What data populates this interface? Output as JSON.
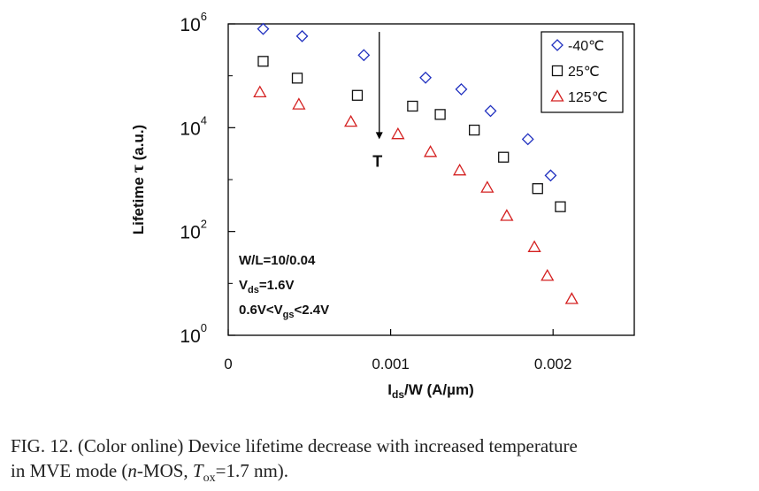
{
  "chart_data": {
    "type": "scatter",
    "x_scale": "linear",
    "y_scale": "log",
    "xlim": [
      0,
      0.0025
    ],
    "ylim": [
      1,
      1000000
    ],
    "x_ticks": [
      0,
      0.001,
      0.002
    ],
    "x_tick_labels": [
      "0",
      "0.001",
      "0.002"
    ],
    "y_ticks": [
      1,
      100,
      10000,
      1000000
    ],
    "y_tick_labels": [
      {
        "base": "10",
        "exp": "0"
      },
      {
        "base": "10",
        "exp": "2"
      },
      {
        "base": "10",
        "exp": "4"
      },
      {
        "base": "10",
        "exp": "6"
      }
    ],
    "xlabel": {
      "main": "I",
      "sub": "ds",
      "rest": "/W (A/µm)"
    },
    "ylabel": {
      "main": "Lifetime ",
      "symbol": "τ",
      "rest": " (a.u.)"
    },
    "legend_position": "top-right",
    "grid": false,
    "series": [
      {
        "name": "-40℃",
        "marker": "diamond",
        "color": "#1f2fbf",
        "x": [
          0.000215,
          0.000455,
          0.000835,
          0.001215,
          0.001435,
          0.001615,
          0.001845,
          0.001985
        ],
        "y": [
          800000,
          580000,
          250000,
          92000,
          55000,
          21000,
          6000,
          1200
        ]
      },
      {
        "name": "25℃",
        "marker": "square",
        "color": "#111111",
        "x": [
          0.000215,
          0.000425,
          0.000795,
          0.001135,
          0.001305,
          0.001515,
          0.001695,
          0.001905,
          0.002045
        ],
        "y": [
          190000,
          90000,
          42000,
          26000,
          18000,
          9000,
          2700,
          670,
          300
        ]
      },
      {
        "name": "125℃",
        "marker": "triangle",
        "color": "#d42020",
        "x": [
          0.000195,
          0.000435,
          0.000755,
          0.001045,
          0.001245,
          0.001425,
          0.001595,
          0.001715,
          0.001885,
          0.001965,
          0.002115
        ],
        "y": [
          48000,
          28000,
          13000,
          7500,
          3400,
          1500,
          700,
          200,
          50,
          14,
          5
        ]
      }
    ],
    "annotations": [
      {
        "kind": "arrow",
        "label": "T",
        "x": 0.00093,
        "y_from": 700000,
        "y_to": 6000
      }
    ],
    "inset_text": [
      {
        "parts": [
          {
            "t": "W/L=10/0.04"
          }
        ]
      },
      {
        "parts": [
          {
            "t": "V"
          },
          {
            "t": "ds",
            "sub": true
          },
          {
            "t": "=1.6V"
          }
        ]
      },
      {
        "parts": [
          {
            "t": "0.6V<V"
          },
          {
            "t": "gs",
            "sub": true
          },
          {
            "t": "<2.4V"
          }
        ]
      }
    ]
  },
  "caption": {
    "line1": "FIG. 12. (Color online) Device lifetime decrease with increased temperature",
    "line2_pre": "in MVE mode (",
    "line2_n": "n",
    "line2_mid": "-MOS, ",
    "line2_T": "T",
    "line2_sub": "ox",
    "line2_post": "=1.7 nm)."
  }
}
